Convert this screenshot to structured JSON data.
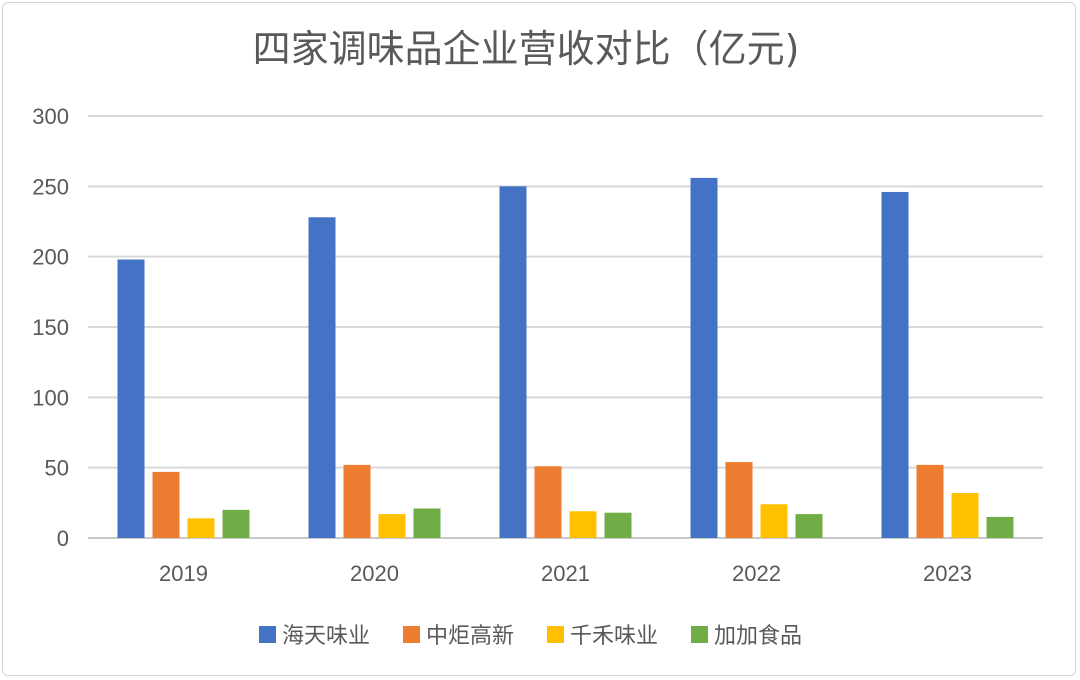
{
  "chart_data": {
    "type": "bar",
    "title": "四家调味品企业营收对比（亿元)",
    "categories": [
      "2019",
      "2020",
      "2021",
      "2022",
      "2023"
    ],
    "series": [
      {
        "name": "海天味业",
        "color": "#4472c4",
        "values": [
          198,
          228,
          250,
          256,
          246
        ]
      },
      {
        "name": "中炬高新",
        "color": "#ed7d31",
        "values": [
          47,
          52,
          51,
          54,
          52
        ]
      },
      {
        "name": "千禾味业",
        "color": "#ffc000",
        "values": [
          14,
          17,
          19,
          24,
          32
        ]
      },
      {
        "name": "加加食品",
        "color": "#70ad47",
        "values": [
          20,
          21,
          18,
          17,
          15
        ]
      }
    ],
    "ylim": [
      0,
      300
    ],
    "yticks": [
      0,
      50,
      100,
      150,
      200,
      250,
      300
    ],
    "grid": true,
    "legend_position": "bottom"
  }
}
